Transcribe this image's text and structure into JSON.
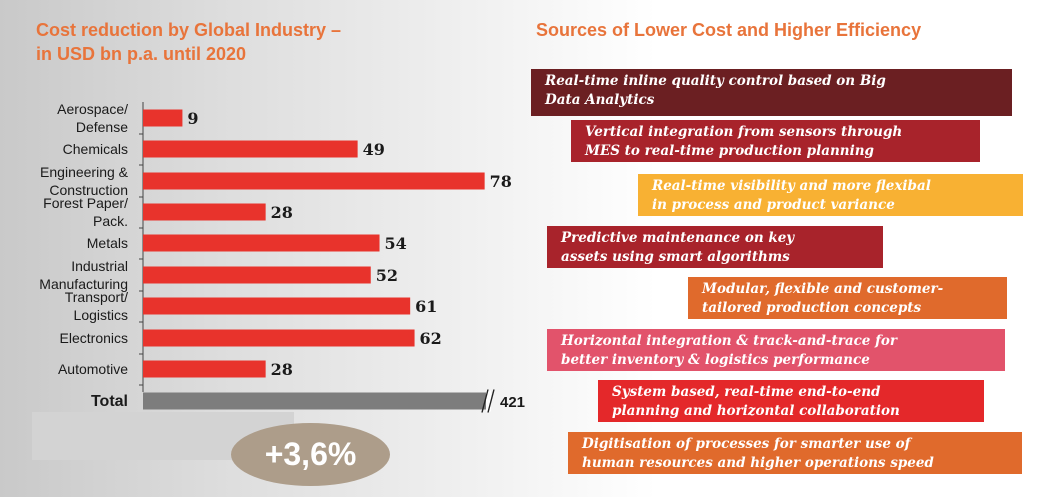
{
  "left_title": "Cost reduction by Global Industry –\nin USD bn p.a. until 2020",
  "right_title": "Sources of Lower Cost and Higher Efficiency",
  "growth_badge": "+3,6%",
  "chart_data": {
    "type": "bar",
    "orientation": "horizontal",
    "categories": [
      "Aerospace/\nDefense",
      "Chemicals",
      "Engineering &\nConstruction",
      "Forest Paper/\nPack.",
      "Metals",
      "Industrial\nManufacturing",
      "Transport/\nLogistics",
      "Electronics",
      "Automotive",
      "Total"
    ],
    "values": [
      9,
      49,
      78,
      28,
      54,
      52,
      61,
      62,
      28,
      421
    ],
    "data_labels": [
      "9",
      "49",
      "78",
      "28",
      "54",
      "52",
      "61",
      "62",
      "28",
      "421"
    ],
    "bar_colors": [
      "#e8332c",
      "#e8332c",
      "#e8332c",
      "#e8332c",
      "#e8332c",
      "#e8332c",
      "#e8332c",
      "#e8332c",
      "#e8332c",
      "#7d7d7d"
    ],
    "total_axis_break": true,
    "xlim": [
      0,
      82
    ],
    "grid": false,
    "legend": "none"
  },
  "sources": [
    {
      "text": "Real-time inline quality control based on Big\nData Analytics",
      "color": "#6b1f22"
    },
    {
      "text": "Vertical integration from sensors through\nMES to real-time production planning",
      "color": "#a8232b"
    },
    {
      "text": "Real-time visibility and more flexibal\nin process and product variance",
      "color": "#f8b133"
    },
    {
      "text": "Predictive maintenance on key\nassets using smart algorithms",
      "color": "#a8232b"
    },
    {
      "text": "Modular, flexible and customer-\ntailored production concepts",
      "color": "#e06a2c"
    },
    {
      "text": "Horizontal integration & track-and-trace  for\nbetter inventory & logistics performance",
      "color": "#e2536b"
    },
    {
      "text": "System based, real-time end-to-end\nplanning and horizontal collaboration",
      "color": "#e4282a"
    },
    {
      "text": "Digitisation of processes for smarter use of\nhuman resources and higher operations speed",
      "color": "#e06a2c"
    }
  ]
}
